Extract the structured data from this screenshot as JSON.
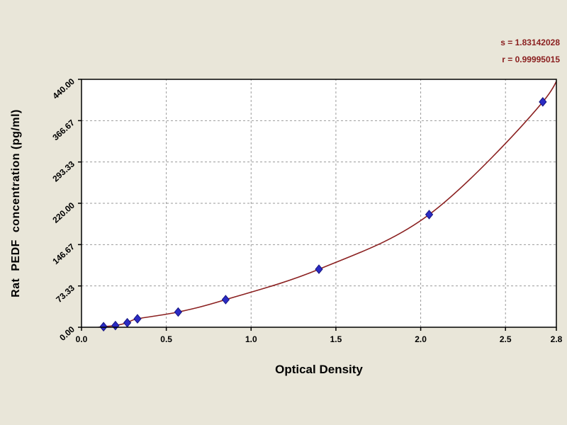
{
  "annotations": {
    "line1": "s = 1.83142028",
    "line2": "r = 0.99995015"
  },
  "chart_data": {
    "type": "scatter",
    "title": "",
    "xlabel": "Optical Density",
    "ylabel": "Rat  PEDF  concentration (pg/ml)",
    "xlim": [
      0,
      2.8
    ],
    "ylim": [
      0,
      440
    ],
    "grid": "dashed",
    "legend": "none",
    "x_ticks": [
      0.0,
      0.5,
      1.0,
      1.5,
      2.0,
      2.5,
      2.8
    ],
    "x_tick_labels": [
      "0.0",
      "0.5",
      "1.0",
      "1.5",
      "2.0",
      "2.5",
      "2.8"
    ],
    "y_ticks": [
      0,
      73.33,
      146.67,
      220,
      293.33,
      366.67,
      440
    ],
    "y_tick_labels": [
      "0.00",
      "73.33",
      "146.67",
      "220.00",
      "293.33",
      "366.67",
      "440.00"
    ],
    "series": [
      {
        "name": "standard-points",
        "type": "scatter",
        "marker": "diamond",
        "color": "#2b2bc4",
        "outline": "#151580",
        "points": [
          [
            0.13,
            1
          ],
          [
            0.2,
            3
          ],
          [
            0.27,
            8
          ],
          [
            0.33,
            15
          ],
          [
            0.57,
            27
          ],
          [
            0.85,
            49
          ],
          [
            1.4,
            103
          ],
          [
            2.05,
            200
          ],
          [
            2.72,
            400
          ]
        ]
      },
      {
        "name": "fit-curve",
        "type": "line",
        "color": "#8b2020",
        "points": [
          [
            0.05,
            -2
          ],
          [
            0.13,
            1
          ],
          [
            0.2,
            3
          ],
          [
            0.27,
            8
          ],
          [
            0.33,
            15
          ],
          [
            0.57,
            27
          ],
          [
            0.85,
            49
          ],
          [
            1.4,
            103
          ],
          [
            2.05,
            200
          ],
          [
            2.72,
            400
          ],
          [
            2.84,
            485
          ]
        ]
      }
    ]
  },
  "colors": {
    "background": "#e9e6d9",
    "plot_bg": "#ffffff",
    "plot_border": "#000000",
    "grid": "#9a9a9a",
    "curve": "#8b2020",
    "marker": "#2b2bc4",
    "annotation": "#8b2020"
  }
}
